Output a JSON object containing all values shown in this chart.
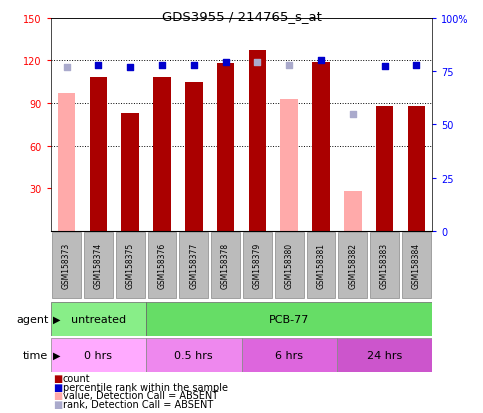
{
  "title": "GDS3955 / 214765_s_at",
  "samples": [
    "GSM158373",
    "GSM158374",
    "GSM158375",
    "GSM158376",
    "GSM158377",
    "GSM158378",
    "GSM158379",
    "GSM158380",
    "GSM158381",
    "GSM158382",
    "GSM158383",
    "GSM158384"
  ],
  "count_values": [
    null,
    108,
    83,
    108,
    105,
    118,
    127,
    null,
    119,
    null,
    88,
    88
  ],
  "count_absent": [
    97,
    null,
    null,
    null,
    null,
    null,
    null,
    93,
    null,
    28,
    null,
    null
  ],
  "rank_values": [
    null,
    117,
    115,
    117,
    117,
    119,
    null,
    null,
    120,
    null,
    116,
    117
  ],
  "rank_absent": [
    115,
    null,
    null,
    null,
    null,
    null,
    119,
    117,
    null,
    82,
    null,
    null
  ],
  "ylim_left": [
    0,
    150
  ],
  "ylim_right": [
    0,
    100
  ],
  "yticks_left": [
    30,
    60,
    90,
    120,
    150
  ],
  "yticks_right": [
    0,
    25,
    50,
    75,
    100
  ],
  "bar_color": "#aa0000",
  "bar_absent_color": "#ffaaaa",
  "rank_color": "#0000cc",
  "rank_absent_color": "#aaaacc",
  "agent_row": [
    {
      "label": "untreated",
      "start": 0,
      "end": 3,
      "color": "#88ee88"
    },
    {
      "label": "PCB-77",
      "start": 3,
      "end": 12,
      "color": "#66dd66"
    }
  ],
  "time_row": [
    {
      "label": "0 hrs",
      "start": 0,
      "end": 3,
      "color": "#ffaaff"
    },
    {
      "label": "0.5 hrs",
      "start": 3,
      "end": 6,
      "color": "#ee88ee"
    },
    {
      "label": "6 hrs",
      "start": 6,
      "end": 9,
      "color": "#dd66dd"
    },
    {
      "label": "24 hrs",
      "start": 9,
      "end": 12,
      "color": "#cc55cc"
    }
  ],
  "grid_lines": [
    60,
    90,
    120
  ],
  "bar_width": 0.55,
  "agent_label": "agent",
  "time_label": "time",
  "fig_width": 4.83,
  "fig_height": 4.14,
  "dpi": 100,
  "bg_color": "#ffffff",
  "plot_bg": "#ffffff",
  "sample_box_color": "#bbbbbb",
  "right_tick_labels": [
    "0",
    "25",
    "50",
    "75",
    "100%"
  ]
}
